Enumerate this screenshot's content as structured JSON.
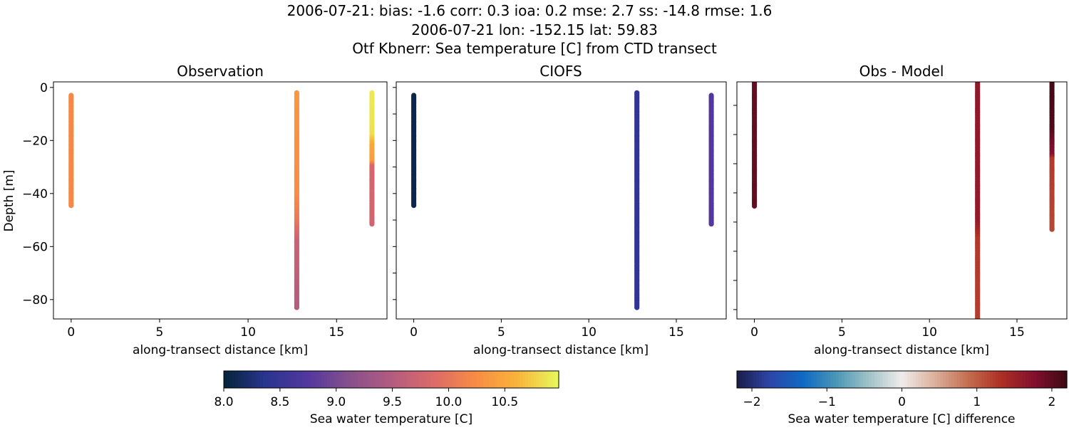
{
  "figure": {
    "title_lines": [
      "2006-07-21: bias: -1.6  corr: 0.3  ioa: 0.2  mse: 2.7  ss: -14.8  rmse: 1.6",
      "2006-07-21 lon: -152.15 lat: 59.83",
      "Otf Kbnerr: Sea temperature [C] from CTD transect"
    ]
  },
  "chart_data": [
    {
      "type": "scatter",
      "title": "Observation",
      "xlabel": "along-transect distance [km]",
      "ylabel": "Depth [m]",
      "xlim": [
        -1.0,
        17.85
      ],
      "ylim": [
        -87.3,
        2.1
      ],
      "xticks": [
        "0",
        "5",
        "10",
        "15"
      ],
      "xtick_values": [
        0,
        5,
        10,
        15
      ],
      "yticks": [
        "0",
        "−20",
        "−40",
        "−60",
        "−80"
      ],
      "ytick_values": [
        0,
        -20,
        -40,
        -60,
        -80
      ],
      "colormap": "thermal",
      "clim": [
        8.0,
        10.98
      ],
      "columns": [
        {
          "x": 0,
          "profile": [
            [
              -3,
              10.2
            ],
            [
              -44.5,
              10.2
            ]
          ]
        },
        {
          "x": 12.75,
          "profile": [
            [
              -2,
              10.35
            ],
            [
              -40,
              10.25
            ],
            [
              -50,
              10.05
            ],
            [
              -58,
              9.7
            ],
            [
              -83,
              9.5
            ]
          ]
        },
        {
          "x": 17,
          "profile": [
            [
              -2,
              10.9
            ],
            [
              -18,
              10.85
            ],
            [
              -22,
              10.5
            ],
            [
              -28,
              10.4
            ],
            [
              -30,
              9.8
            ],
            [
              -51.5,
              9.75
            ]
          ]
        }
      ]
    },
    {
      "type": "scatter",
      "title": "CIOFS",
      "xlabel": "along-transect distance [km]",
      "xlim": [
        -1.0,
        17.85
      ],
      "ylim": [
        -87.3,
        2.1
      ],
      "xticks": [
        "0",
        "5",
        "10",
        "15"
      ],
      "xtick_values": [
        0,
        5,
        10,
        15
      ],
      "ytick_values": [
        0,
        -20,
        -40,
        -60,
        -80
      ],
      "ytick_minor_values": [
        -10,
        -30,
        -50,
        -70
      ],
      "colormap": "thermal",
      "clim": [
        8.0,
        10.98
      ],
      "columns": [
        {
          "x": 0,
          "profile": [
            [
              -3,
              8.08
            ],
            [
              -44.5,
              8.08
            ]
          ]
        },
        {
          "x": 12.75,
          "profile": [
            [
              -2,
              8.45
            ],
            [
              -83,
              8.45
            ]
          ]
        },
        {
          "x": 17,
          "profile": [
            [
              -3,
              8.75
            ],
            [
              -51.5,
              8.75
            ]
          ]
        }
      ]
    },
    {
      "type": "scatter",
      "title": "Obs - Model",
      "xlabel": "along-transect distance [km]",
      "xlim": [
        -1.0,
        17.85
      ],
      "ylim": [
        -83.2,
        -1.95
      ],
      "xticks": [
        "0",
        "5",
        "10",
        "15"
      ],
      "xtick_values": [
        0,
        5,
        10,
        15
      ],
      "ytick_values": [
        -10,
        -20,
        -30,
        -40,
        -50,
        -60,
        -70,
        -80
      ],
      "colormap": "balance",
      "clim": [
        -2.2,
        2.2
      ],
      "columns": [
        {
          "x": 0,
          "profile": [
            [
              -2,
              1.95
            ],
            [
              -44.5,
              1.95
            ]
          ]
        },
        {
          "x": 12.75,
          "profile": [
            [
              -2,
              1.65
            ],
            [
              -50,
              1.6
            ],
            [
              -56,
              1.25
            ],
            [
              -90,
              1.2
            ]
          ]
        },
        {
          "x": 17,
          "profile": [
            [
              -2,
              2.15
            ],
            [
              -18,
              2.1
            ],
            [
              -22,
              1.9
            ],
            [
              -27,
              1.75
            ],
            [
              -28.5,
              1.25
            ],
            [
              -52.5,
              1.15
            ]
          ]
        }
      ]
    }
  ],
  "colorbars": [
    {
      "label": "Sea water temperature [C]",
      "ticks": [
        "8.0",
        "8.5",
        "9.0",
        "9.5",
        "10.0",
        "10.5"
      ],
      "tick_values": [
        8.0,
        8.5,
        9.0,
        9.5,
        10.0,
        10.5
      ],
      "range": [
        8.0,
        10.98
      ],
      "colormap": "thermal"
    },
    {
      "label": "Sea water temperature [C] difference",
      "ticks": [
        "−2",
        "−1",
        "0",
        "1",
        "2"
      ],
      "tick_values": [
        -2,
        -1,
        0,
        1,
        2
      ],
      "range": [
        -2.2,
        2.2
      ],
      "colormap": "balance"
    }
  ],
  "colormaps": {
    "thermal": [
      "#04233a",
      "#2a3590",
      "#52379e",
      "#87508c",
      "#b35b80",
      "#dc6a69",
      "#f88b44",
      "#f9b33a",
      "#e8f95c"
    ],
    "balance": [
      "#1a1d48",
      "#2d45a8",
      "#0f69c4",
      "#4a96b6",
      "#a0c3c8",
      "#f0eceb",
      "#dcaf9b",
      "#c56e50",
      "#ad2f24",
      "#84102e",
      "#3c0912"
    ]
  }
}
